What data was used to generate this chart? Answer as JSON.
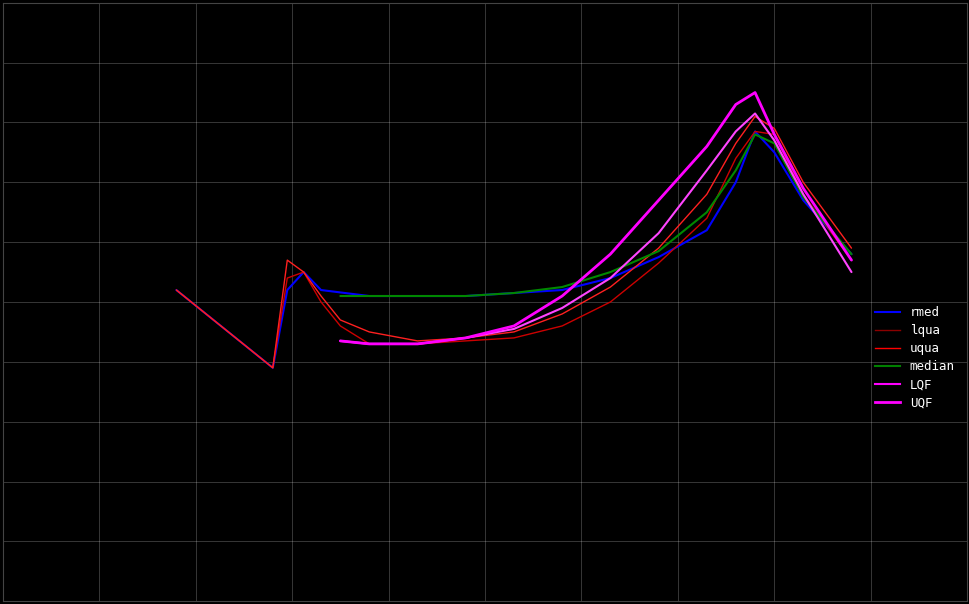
{
  "background_color": "#000000",
  "grid_color": "#ffffff",
  "grid_alpha": 0.25,
  "grid_linewidth": 0.6,
  "figsize": [
    9.7,
    6.04
  ],
  "dpi": 100,
  "xlim": [
    0,
    10
  ],
  "ylim": [
    0,
    10
  ],
  "n_xticks": 11,
  "n_yticks": 11,
  "legend": {
    "labels": [
      "rmed",
      "lqua",
      "uqua",
      "median",
      "LQF",
      "UQF"
    ],
    "colors": [
      "#0000ff",
      "#8b0000",
      "#ff0000",
      "#008000",
      "#ff00ff",
      "#ff00ff"
    ],
    "linewidths": [
      1.5,
      1.0,
      1.0,
      1.5,
      1.5,
      2.0
    ]
  },
  "series": {
    "rmed": {
      "color": "#0000ff",
      "linewidth": 1.5,
      "x": [
        1.8,
        2.8,
        2.95,
        3.12,
        3.3,
        3.8,
        4.3,
        4.8,
        5.3,
        5.8,
        6.3,
        6.8,
        7.3,
        7.6,
        7.8,
        8.0,
        8.3,
        8.8
      ],
      "y": [
        5.2,
        3.9,
        5.2,
        5.5,
        5.2,
        5.1,
        5.1,
        5.1,
        5.15,
        5.2,
        5.4,
        5.75,
        6.2,
        7.0,
        7.85,
        7.5,
        6.7,
        5.8
      ]
    },
    "lqua": {
      "color": "#cc0000",
      "linewidth": 1.0,
      "x": [
        1.8,
        2.8,
        2.95,
        3.12,
        3.3,
        3.5,
        3.8,
        4.3,
        4.8,
        5.3,
        5.8,
        6.3,
        6.8,
        7.3,
        7.6,
        7.8,
        8.0,
        8.3,
        8.8
      ],
      "y": [
        5.2,
        3.9,
        5.4,
        5.5,
        5.0,
        4.6,
        4.3,
        4.3,
        4.35,
        4.4,
        4.6,
        5.0,
        5.65,
        6.4,
        7.4,
        7.85,
        7.8,
        6.8,
        5.7
      ]
    },
    "uqua": {
      "color": "#ff2020",
      "linewidth": 1.0,
      "x": [
        1.8,
        2.8,
        2.95,
        3.12,
        3.3,
        3.5,
        3.8,
        4.3,
        4.8,
        5.3,
        5.8,
        6.3,
        6.8,
        7.3,
        7.6,
        7.8,
        8.0,
        8.3,
        8.8
      ],
      "y": [
        5.2,
        3.9,
        5.7,
        5.5,
        5.1,
        4.7,
        4.5,
        4.35,
        4.4,
        4.5,
        4.8,
        5.25,
        5.9,
        6.8,
        7.65,
        8.1,
        7.9,
        7.0,
        5.9
      ]
    },
    "median": {
      "color": "#008800",
      "linewidth": 1.5,
      "x": [
        3.5,
        3.8,
        4.3,
        4.8,
        5.3,
        5.8,
        6.3,
        6.8,
        7.3,
        7.6,
        7.8,
        8.0,
        8.3,
        8.8
      ],
      "y": [
        5.1,
        5.1,
        5.1,
        5.1,
        5.15,
        5.25,
        5.5,
        5.85,
        6.5,
        7.2,
        7.8,
        7.65,
        6.75,
        5.8
      ]
    },
    "LQF": {
      "color": "#ff44ff",
      "linewidth": 1.5,
      "x": [
        3.5,
        3.8,
        4.3,
        4.8,
        5.3,
        5.8,
        6.3,
        6.8,
        7.3,
        7.6,
        7.8,
        8.0,
        8.3,
        8.8
      ],
      "y": [
        4.35,
        4.3,
        4.3,
        4.4,
        4.55,
        4.9,
        5.4,
        6.15,
        7.2,
        7.85,
        8.15,
        7.7,
        6.8,
        5.5
      ]
    },
    "UQF": {
      "color": "#ff00ff",
      "linewidth": 2.0,
      "x": [
        3.5,
        3.8,
        4.3,
        4.8,
        5.3,
        5.8,
        6.3,
        6.8,
        7.3,
        7.6,
        7.8,
        8.0,
        8.3,
        8.8
      ],
      "y": [
        4.35,
        4.3,
        4.3,
        4.4,
        4.6,
        5.1,
        5.8,
        6.7,
        7.6,
        8.3,
        8.5,
        7.8,
        6.9,
        5.7
      ]
    }
  }
}
